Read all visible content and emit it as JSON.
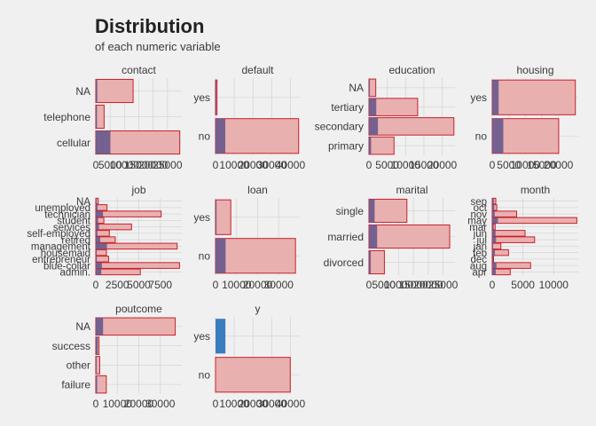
{
  "title": "Distribution",
  "subtitle": "of each numeric variable",
  "colors": {
    "background": "#f0f0f0",
    "grid": "#d6d6d6",
    "text": "#3a3a3a",
    "title": "#222222",
    "bar_fill": "#e9b0b0",
    "bar_stroke": "#c8202a",
    "overlay_fill": "#6a5a8c",
    "y_yes_fill": "#3a7dbf"
  },
  "chart_data": [
    {
      "type": "bar",
      "orientation": "horizontal",
      "title": "contact",
      "categories": [
        "cellular",
        "telephone",
        "NA"
      ],
      "values": [
        29285,
        2906,
        13020
      ],
      "overlay": [
        5100,
        420,
        530
      ],
      "xlim": [
        0,
        30000
      ],
      "xticks": [
        0,
        5000,
        10000,
        15000,
        20000,
        25000
      ],
      "xticklabels": [
        "0",
        "5000",
        "10000",
        "15000",
        "20000",
        "25000"
      ],
      "grid": true
    },
    {
      "type": "bar",
      "orientation": "horizontal",
      "title": "default",
      "categories": [
        "no",
        "yes"
      ],
      "values": [
        44396,
        815
      ],
      "overlay": [
        5237,
        52
      ],
      "xlim": [
        0,
        45000
      ],
      "xticks": [
        0,
        10000,
        20000,
        30000,
        40000
      ],
      "xticklabels": [
        "0",
        "10000",
        "20000",
        "30000",
        "40000"
      ],
      "grid": true
    },
    {
      "type": "bar",
      "orientation": "horizontal",
      "title": "education",
      "categories": [
        "primary",
        "secondary",
        "tertiary",
        "NA"
      ],
      "values": [
        6851,
        23202,
        13301,
        1857
      ],
      "overlay": [
        591,
        2450,
        1996,
        252
      ],
      "xlim": [
        0,
        23500
      ],
      "xticks": [
        0,
        5000,
        10000,
        15000,
        20000
      ],
      "xticklabels": [
        "0",
        "5000",
        "10000",
        "15000",
        "20000"
      ],
      "grid": true
    },
    {
      "type": "bar",
      "orientation": "horizontal",
      "title": "housing",
      "categories": [
        "no",
        "yes"
      ],
      "values": [
        20081,
        25130
      ],
      "overlay": [
        3354,
        1935
      ],
      "xlim": [
        0,
        26000
      ],
      "xticks": [
        0,
        5000,
        10000,
        15000,
        20000
      ],
      "xticklabels": [
        "0",
        "5000",
        "10000",
        "15000",
        "20000"
      ],
      "grid": true
    },
    {
      "type": "bar",
      "orientation": "horizontal",
      "title": "job",
      "categories": [
        "admin.",
        "blue-collar",
        "entrepreneur",
        "housemaid",
        "management",
        "retired",
        "self-employed",
        "services",
        "student",
        "technician",
        "unemployed",
        "NA"
      ],
      "values": [
        5171,
        9732,
        1487,
        1240,
        9458,
        2264,
        1579,
        4154,
        938,
        7597,
        1303,
        288
      ],
      "overlay": [
        631,
        708,
        123,
        109,
        1301,
        516,
        187,
        369,
        269,
        840,
        202,
        34
      ],
      "xlim": [
        0,
        10000
      ],
      "xticks": [
        0,
        2500,
        5000,
        7500
      ],
      "xticklabels": [
        "0",
        "2500",
        "5000",
        "7500"
      ],
      "grid": true
    },
    {
      "type": "bar",
      "orientation": "horizontal",
      "title": "loan",
      "categories": [
        "no",
        "yes"
      ],
      "values": [
        37967,
        7244
      ],
      "overlay": [
        4805,
        484
      ],
      "xlim": [
        0,
        40000
      ],
      "xticks": [
        0,
        10000,
        20000,
        30000
      ],
      "xticklabels": [
        "0",
        "10000",
        "20000",
        "30000"
      ],
      "grid": true
    },
    {
      "type": "bar",
      "orientation": "horizontal",
      "title": "marital",
      "categories": [
        "divorced",
        "married",
        "single"
      ],
      "values": [
        5207,
        27214,
        12790
      ],
      "overlay": [
        622,
        2755,
        1912
      ],
      "xlim": [
        0,
        29000
      ],
      "xticks": [
        0,
        5000,
        10000,
        15000,
        20000,
        25000
      ],
      "xticklabels": [
        "0",
        "5000",
        "10000",
        "15000",
        "20000",
        "25000"
      ],
      "grid": true
    },
    {
      "type": "bar",
      "orientation": "horizontal",
      "title": "month",
      "categories": [
        "apr",
        "aug",
        "dec",
        "feb",
        "jan",
        "jul",
        "jun",
        "mar",
        "may",
        "nov",
        "oct",
        "sep"
      ],
      "values": [
        2932,
        6247,
        214,
        2649,
        1403,
        6895,
        5341,
        477,
        13766,
        3970,
        738,
        579
      ],
      "overlay": [
        577,
        688,
        100,
        441,
        142,
        627,
        546,
        248,
        925,
        403,
        323,
        269
      ],
      "xlim": [
        0,
        14000
      ],
      "xticks": [
        0,
        5000,
        10000
      ],
      "xticklabels": [
        "0",
        "5000",
        "10000"
      ],
      "grid": true
    },
    {
      "type": "bar",
      "orientation": "horizontal",
      "title": "poutcome",
      "categories": [
        "failure",
        "other",
        "success",
        "NA"
      ],
      "values": [
        4901,
        1840,
        1511,
        36959
      ],
      "overlay": [
        618,
        307,
        978,
        3386
      ],
      "xlim": [
        0,
        40000
      ],
      "xticks": [
        0,
        10000,
        20000,
        30000
      ],
      "xticklabels": [
        "0",
        "10000",
        "20000",
        "30000"
      ],
      "grid": true
    },
    {
      "type": "bar",
      "orientation": "horizontal",
      "title": "y",
      "categories": [
        "no",
        "yes"
      ],
      "values": [
        39922,
        5289
      ],
      "overlay": [
        0,
        5289
      ],
      "xlim": [
        0,
        45000
      ],
      "xticks": [
        0,
        10000,
        20000,
        30000,
        40000
      ],
      "xticklabels": [
        "0",
        "10000",
        "20000",
        "30000",
        "40000"
      ],
      "grid": true
    }
  ]
}
